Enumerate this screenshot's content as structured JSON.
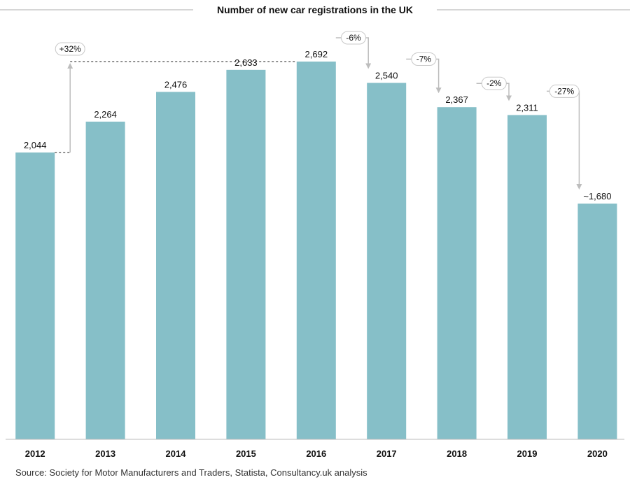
{
  "colors": {
    "bar": "#86bfc8",
    "rule": "#c8c8c8",
    "axis": "#bbbbbb",
    "arrow": "#bdbdbd",
    "dashed": "#222222"
  },
  "source": "Source: Society for Motor Manufacturers and Traders, Statista, Consultancy.uk analysis",
  "chart_data": {
    "type": "bar",
    "title": "Number of new car registrations in the UK",
    "categories": [
      "2012",
      "2013",
      "2014",
      "2015",
      "2016",
      "2017",
      "2018",
      "2019",
      "2020"
    ],
    "values": [
      2044,
      2264,
      2476,
      2633,
      2692,
      2540,
      2367,
      2311,
      1680
    ],
    "value_labels": [
      "2,044",
      "2,264",
      "2,476",
      "2,633",
      "2,692",
      "2,540",
      "2,367",
      "2,311",
      "~1,680"
    ],
    "ylim": [
      0,
      2692
    ],
    "grid": false,
    "annotations": [
      {
        "text": "+32%",
        "from": "2012",
        "to": "2016",
        "kind": "growth"
      },
      {
        "text": "-6%",
        "from": "2016",
        "to": "2017",
        "kind": "change"
      },
      {
        "text": "-7%",
        "from": "2017",
        "to": "2018",
        "kind": "change"
      },
      {
        "text": "-2%",
        "from": "2018",
        "to": "2019",
        "kind": "change"
      },
      {
        "text": "-27%",
        "from": "2019",
        "to": "2020",
        "kind": "change"
      }
    ]
  }
}
